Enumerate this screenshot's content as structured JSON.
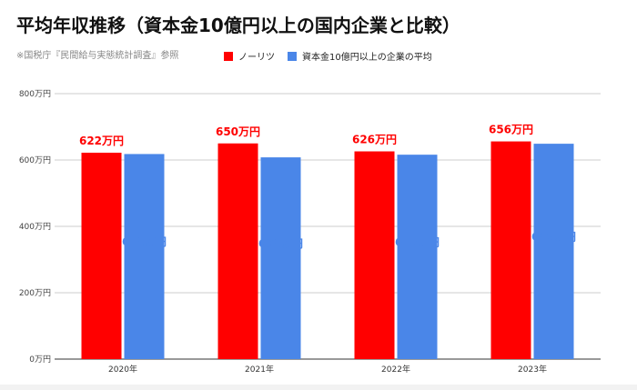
{
  "chart_data": {
    "type": "bar",
    "title": "平均年収推移（資本金10億円以上の国内企業と比較）",
    "subtitle": "※国税庁『民間給与実態統計調査』参照",
    "categories": [
      "2020年",
      "2021年",
      "2022年",
      "2023年"
    ],
    "series": [
      {
        "name": "ノーリツ",
        "color": "#ff0000",
        "values": [
          622,
          650,
          626,
          656
        ],
        "labels": [
          "622万円",
          "650万円",
          "626万円",
          "656万円"
        ],
        "label_color": "#ff0000",
        "label_position": "above"
      },
      {
        "name": "資本金10億円以上の企業の平均",
        "color": "#4a86e8",
        "values": [
          618,
          608,
          616,
          649
        ],
        "labels": [
          "618万円",
          "608万円",
          "616万円",
          "649万円"
        ],
        "label_color": "#4a86e8",
        "label_position": "middle"
      }
    ],
    "yticks": [
      0,
      200,
      400,
      600,
      800
    ],
    "ytick_labels": [
      "0万円",
      "200万円",
      "400万円",
      "600万円",
      "800万円"
    ],
    "ylim": [
      0,
      800
    ],
    "grid": true,
    "legend": "top"
  }
}
